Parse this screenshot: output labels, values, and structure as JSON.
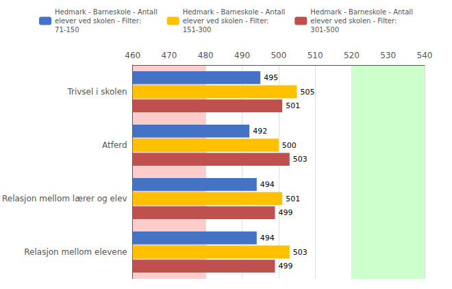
{
  "chart_data": {
    "type": "bar",
    "orientation": "horizontal",
    "categories": [
      "Relasjon mellom elevene",
      "Relasjon mellom lærer og elev",
      "Atferd",
      "Trivsel i skolen"
    ],
    "series": [
      {
        "name": "Hedmark - Barneskole - Antall\nelever ved skolen - Filter:\n71-150",
        "color": "#4472C4",
        "values": [
          494,
          494,
          492,
          495
        ]
      },
      {
        "name": "Hedmark - Barneskole - Antall\nelever ved skolen - Filter:\n151-300",
        "color": "#FFC000",
        "values": [
          503,
          501,
          500,
          505
        ]
      },
      {
        "name": "Hedmark - Barneskole - Antall\nelever ved skolen - Filter:\n301-500",
        "color": "#C0504D",
        "values": [
          499,
          499,
          503,
          501
        ]
      }
    ],
    "xlim": [
      460,
      540
    ],
    "xticks": [
      460,
      470,
      480,
      490,
      500,
      510,
      520,
      530,
      540
    ],
    "bands": [
      {
        "range": [
          460,
          480
        ],
        "color": "#FFCCCC"
      },
      {
        "range": [
          520,
          540
        ],
        "color": "#CCFFCC"
      }
    ],
    "grid": true,
    "legend": "top",
    "data_labels": true
  }
}
